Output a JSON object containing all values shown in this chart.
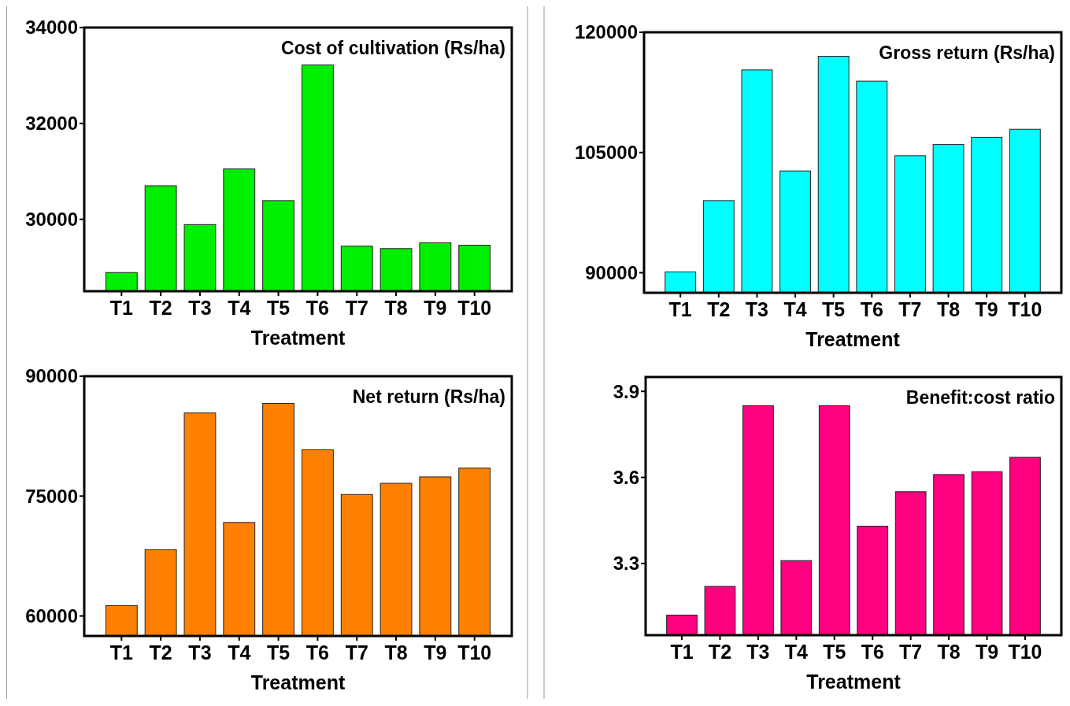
{
  "chart_data": [
    {
      "type": "bar",
      "title": "Cost of cultivation (Rs/ha)",
      "xlabel": "Treatment",
      "categories": [
        "T1",
        "T2",
        "T3",
        "T4",
        "T5",
        "T6",
        "T7",
        "T8",
        "T9",
        "T10"
      ],
      "values": [
        28890,
        30700,
        29890,
        31050,
        30390,
        33220,
        29440,
        29390,
        29510,
        29460
      ],
      "color": "#00ee00",
      "ylim": [
        28500,
        34000
      ],
      "yticks": [
        30000,
        32000,
        34000
      ]
    },
    {
      "type": "bar",
      "title": "Gross return (Rs/ha)",
      "xlabel": "Treatment",
      "categories": [
        "T1",
        "T2",
        "T3",
        "T4",
        "T5",
        "T6",
        "T7",
        "T8",
        "T9",
        "T10"
      ],
      "values": [
        90100,
        99000,
        115300,
        102700,
        117000,
        113900,
        104600,
        106000,
        106900,
        107900
      ],
      "color": "#00ffff",
      "ylim": [
        87500,
        120000
      ],
      "yticks": [
        90000,
        105000,
        120000
      ]
    },
    {
      "type": "bar",
      "title": "Net return (Rs/ha)",
      "xlabel": "Treatment",
      "categories": [
        "T1",
        "T2",
        "T3",
        "T4",
        "T5",
        "T6",
        "T7",
        "T8",
        "T9",
        "T10"
      ],
      "values": [
        61300,
        68300,
        85400,
        71700,
        86600,
        80800,
        75200,
        76600,
        77400,
        78500
      ],
      "color": "#ff8000",
      "ylim": [
        57500,
        90000
      ],
      "yticks": [
        60000,
        75000,
        90000
      ]
    },
    {
      "type": "bar",
      "title": "Benefit:cost ratio",
      "xlabel": "Treatment",
      "categories": [
        "T1",
        "T2",
        "T3",
        "T4",
        "T5",
        "T6",
        "T7",
        "T8",
        "T9",
        "T10"
      ],
      "values": [
        3.12,
        3.22,
        3.85,
        3.31,
        3.85,
        3.43,
        3.55,
        3.61,
        3.62,
        3.67
      ],
      "color": "#ff0080",
      "ylim": [
        3.05,
        3.95
      ],
      "yticks": [
        3.3,
        3.6,
        3.9
      ]
    }
  ]
}
